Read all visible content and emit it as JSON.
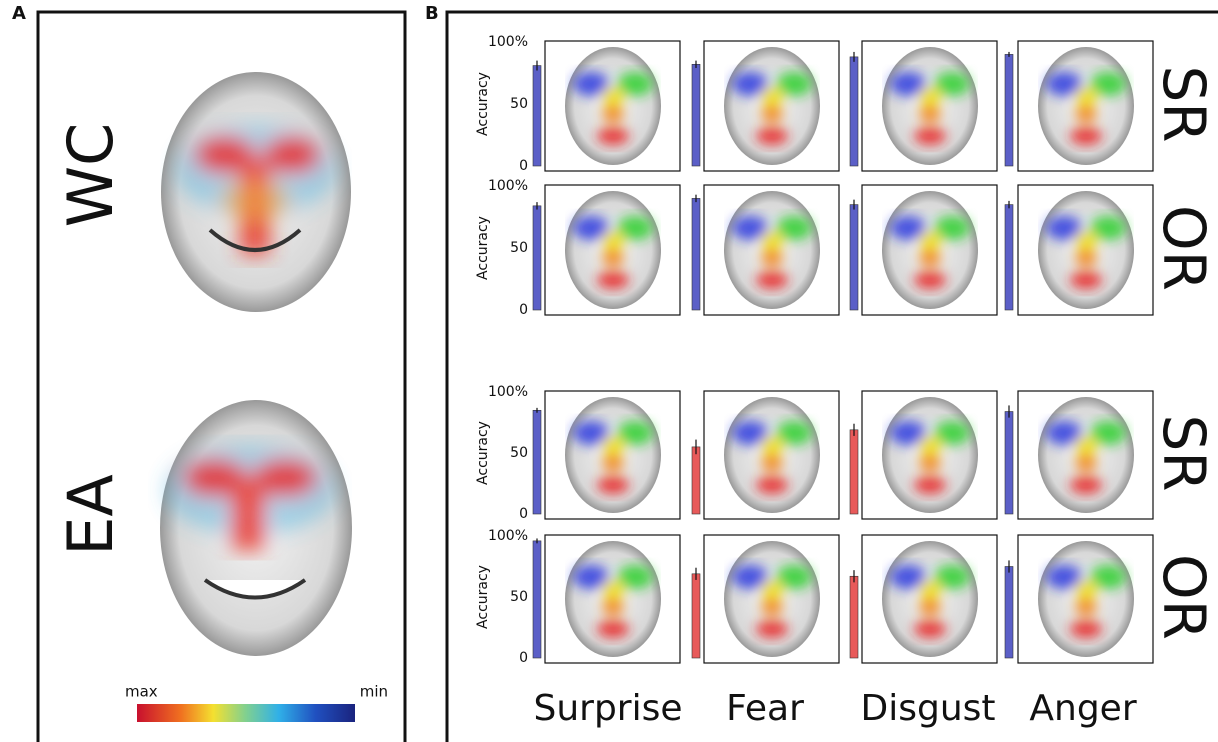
{
  "panel_a": {
    "label": "A",
    "groups": [
      "WC",
      "EA"
    ],
    "colorbar": {
      "max_label": "max",
      "min_label": "min"
    }
  },
  "panel_b": {
    "label": "B",
    "categories": [
      "Surprise",
      "Fear",
      "Disgust",
      "Anger"
    ]
  },
  "chart_data": [
    {
      "type": "bar",
      "row_label": "SR",
      "ylabel": "Accuracy",
      "values": [
        81,
        82,
        88,
        90
      ],
      "errors": [
        4,
        3,
        4,
        2
      ],
      "colors": [
        "#5b5fc7",
        "#5b5fc7",
        "#5b5fc7",
        "#5b5fc7"
      ],
      "ylim": [
        0,
        100
      ],
      "yticks": [
        0,
        50,
        {
          "value": 100,
          "label": "100%"
        }
      ]
    },
    {
      "type": "bar",
      "row_label": "OR",
      "ylabel": "Accuracy",
      "values": [
        84,
        90,
        85,
        85
      ],
      "errors": [
        3,
        3,
        4,
        3
      ],
      "colors": [
        "#5b5fc7",
        "#5b5fc7",
        "#5b5fc7",
        "#5b5fc7"
      ],
      "ylim": [
        0,
        100
      ],
      "yticks": [
        0,
        50,
        {
          "value": 100,
          "label": "100%"
        }
      ]
    },
    {
      "type": "bar",
      "row_label": "SR",
      "ylabel": "Accuracy",
      "values": [
        85,
        55,
        69,
        84
      ],
      "errors": [
        2,
        6,
        5,
        5
      ],
      "colors": [
        "#5b5fc7",
        "#e85a5a",
        "#e85a5a",
        "#5b5fc7"
      ],
      "ylim": [
        0,
        100
      ],
      "yticks": [
        0,
        50,
        {
          "value": 100,
          "label": "100%"
        }
      ]
    },
    {
      "type": "bar",
      "row_label": "OR",
      "ylabel": "Accuracy",
      "values": [
        96,
        69,
        67,
        75
      ],
      "errors": [
        2,
        5,
        5,
        5
      ],
      "colors": [
        "#5b5fc7",
        "#e85a5a",
        "#e85a5a",
        "#5b5fc7"
      ],
      "ylim": [
        0,
        100
      ],
      "yticks": [
        0,
        50,
        {
          "value": 100,
          "label": "100%"
        }
      ]
    }
  ]
}
